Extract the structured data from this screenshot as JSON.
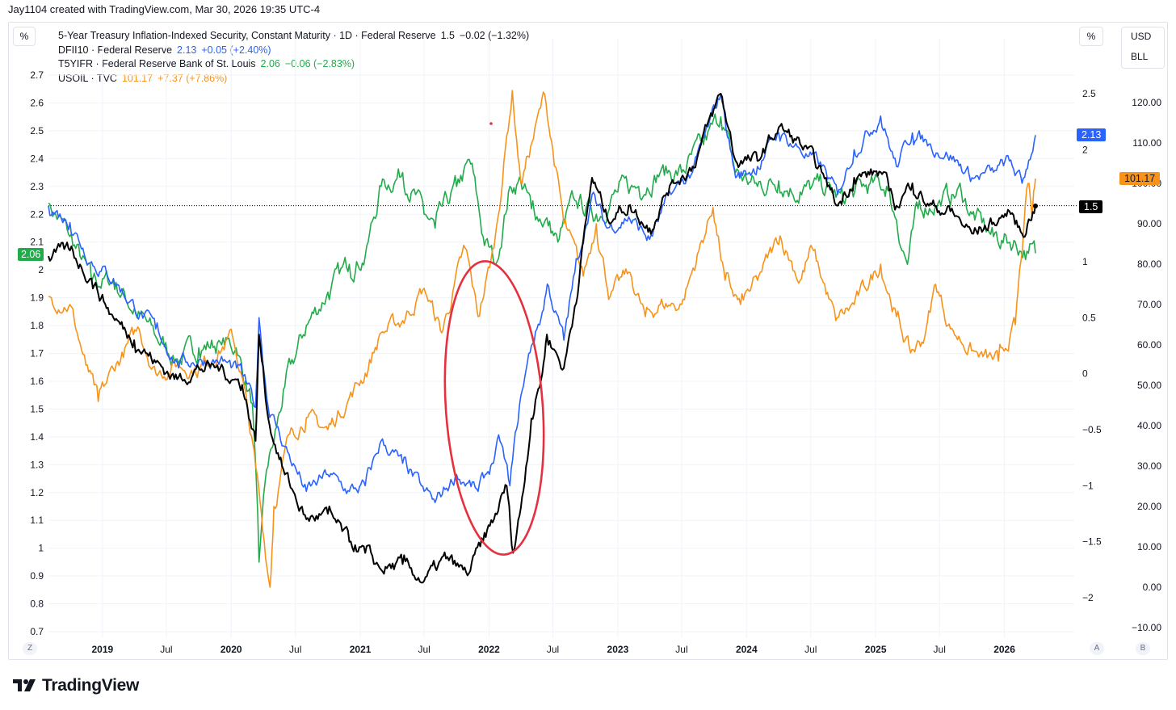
{
  "header": {
    "credit": "Jay1104 created with TradingView.com, Mar 30, 2026 19:35 UTC-4"
  },
  "toolbar": {
    "left_unit": "%",
    "right_unit": "%",
    "currency": "USD",
    "unit2": "BLL",
    "z_label": "Z",
    "a_label": "A",
    "b_label": "B"
  },
  "brand": {
    "name": "TradingView"
  },
  "legend": [
    {
      "title": "5-Year Treasury Inflation-Indexed Security, Constant Maturity · 1D · Federal Reserve",
      "value": "1.5",
      "change": "−0.02 (−1.32%)",
      "color": "#000000",
      "value_color": "#131722"
    },
    {
      "title": "DFII10 · Federal Reserve",
      "value": "2.13",
      "change": "+0.05 (+2.40%)",
      "color": "#2962ff",
      "value_color": "#2962ff"
    },
    {
      "title": "T5YIFR · Federal Reserve Bank of St. Louis",
      "value": "2.06",
      "change": "−0.06 (−2.83%)",
      "color": "#22ab4a",
      "value_color": "#22ab4a"
    },
    {
      "title": "USOIL · TVC",
      "value": "101.17",
      "change": "+7.37 (+7.86%)",
      "color": "#f7931a",
      "value_color": "#f7931a"
    }
  ],
  "price_badges": {
    "green": "2.06",
    "blue": "2.13",
    "black": "1.5",
    "orange": "101.17"
  },
  "chart_data": {
    "type": "line",
    "x_range": [
      "2018-08-01",
      "2026-03-30"
    ],
    "x_ticks": [
      {
        "label": "2019",
        "date": "2019-01-01",
        "bold": true
      },
      {
        "label": "Jul",
        "date": "2019-07-01",
        "bold": false
      },
      {
        "label": "2020",
        "date": "2020-01-01",
        "bold": true
      },
      {
        "label": "Jul",
        "date": "2020-07-01",
        "bold": false
      },
      {
        "label": "2021",
        "date": "2021-01-01",
        "bold": true
      },
      {
        "label": "Jul",
        "date": "2021-07-01",
        "bold": false
      },
      {
        "label": "2022",
        "date": "2022-01-01",
        "bold": true
      },
      {
        "label": "Jul",
        "date": "2022-07-01",
        "bold": false
      },
      {
        "label": "2023",
        "date": "2023-01-01",
        "bold": true
      },
      {
        "label": "Jul",
        "date": "2023-07-01",
        "bold": false
      },
      {
        "label": "2024",
        "date": "2024-01-01",
        "bold": true
      },
      {
        "label": "Jul",
        "date": "2024-07-01",
        "bold": false
      },
      {
        "label": "2025",
        "date": "2025-01-01",
        "bold": true
      },
      {
        "label": "Jul",
        "date": "2025-07-01",
        "bold": false
      },
      {
        "label": "2026",
        "date": "2026-01-01",
        "bold": true
      }
    ],
    "left_axis": {
      "unit": "%",
      "range": [
        0.7,
        2.75
      ],
      "ticks": [
        "0.7",
        "0.8",
        "0.9",
        "1",
        "1.1",
        "1.2",
        "1.3",
        "1.4",
        "1.5",
        "1.6",
        "1.7",
        "1.8",
        "1.9",
        "2",
        "2.1",
        "2.2",
        "2.3",
        "2.4",
        "2.5",
        "2.6",
        "2.7"
      ]
    },
    "mid_axis": {
      "unit": "%",
      "range": [
        -2.2,
        2.75
      ],
      "ticks": [
        "−2",
        "−1.5",
        "−1",
        "−0.5",
        "0",
        "0.5",
        "1",
        "1.5",
        "2",
        "2.5"
      ]
    },
    "right_axis": {
      "unit": "USD/BLL",
      "range": [
        -13,
        130
      ],
      "ticks": [
        "−10.00",
        "0.00",
        "10.00",
        "20.00",
        "30.00",
        "40.00",
        "50.00",
        "60.00",
        "70.00",
        "80.00",
        "90.00",
        "100.00",
        "110.00",
        "120.00"
      ]
    },
    "last_value_line": 1.5,
    "series": [
      {
        "name": "T5YIFR · Federal Reserve Bank of St. Louis",
        "axis": "left",
        "color": "#22ab4a",
        "points": [
          [
            "2018-08-01",
            2.24
          ],
          [
            "2018-10-01",
            2.12
          ],
          [
            "2018-12-01",
            1.96
          ],
          [
            "2019-02-01",
            1.96
          ],
          [
            "2019-04-01",
            1.86
          ],
          [
            "2019-06-01",
            1.76
          ],
          [
            "2019-08-01",
            1.68
          ],
          [
            "2019-10-01",
            1.72
          ],
          [
            "2019-12-01",
            1.74
          ],
          [
            "2020-01-15",
            1.72
          ],
          [
            "2020-03-01",
            1.52
          ],
          [
            "2020-03-20",
            0.95
          ],
          [
            "2020-04-10",
            1.28
          ],
          [
            "2020-05-01",
            1.38
          ],
          [
            "2020-06-01",
            1.58
          ],
          [
            "2020-08-01",
            1.8
          ],
          [
            "2020-10-01",
            1.92
          ],
          [
            "2020-12-01",
            2.02
          ],
          [
            "2021-01-15",
            2.05
          ],
          [
            "2021-03-01",
            2.3
          ],
          [
            "2021-05-01",
            2.35
          ],
          [
            "2021-07-01",
            2.2
          ],
          [
            "2021-08-01",
            2.15
          ],
          [
            "2021-10-01",
            2.3
          ],
          [
            "2021-11-10",
            2.38
          ],
          [
            "2021-12-15",
            2.12
          ],
          [
            "2022-01-20",
            2.02
          ],
          [
            "2022-03-01",
            2.3
          ],
          [
            "2022-04-01",
            2.32
          ],
          [
            "2022-05-01",
            2.22
          ],
          [
            "2022-06-10",
            2.18
          ],
          [
            "2022-07-15",
            2.1
          ],
          [
            "2022-09-01",
            2.25
          ],
          [
            "2022-11-01",
            2.2
          ],
          [
            "2023-01-01",
            2.28
          ],
          [
            "2023-03-01",
            2.3
          ],
          [
            "2023-05-01",
            2.35
          ],
          [
            "2023-07-01",
            2.35
          ],
          [
            "2023-09-01",
            2.45
          ],
          [
            "2023-10-20",
            2.55
          ],
          [
            "2023-12-01",
            2.35
          ],
          [
            "2024-02-01",
            2.3
          ],
          [
            "2024-04-01",
            2.32
          ],
          [
            "2024-06-01",
            2.28
          ],
          [
            "2024-08-01",
            2.3
          ],
          [
            "2024-10-01",
            2.25
          ],
          [
            "2024-12-01",
            2.3
          ],
          [
            "2025-02-01",
            2.3
          ],
          [
            "2025-03-01",
            2.18
          ],
          [
            "2025-04-01",
            2.02
          ],
          [
            "2025-05-01",
            2.22
          ],
          [
            "2025-07-01",
            2.25
          ],
          [
            "2025-09-01",
            2.28
          ],
          [
            "2025-10-01",
            2.2
          ],
          [
            "2025-12-01",
            2.12
          ],
          [
            "2026-02-01",
            2.1
          ],
          [
            "2026-03-10",
            2.06
          ],
          [
            "2026-03-30",
            2.06
          ]
        ]
      },
      {
        "name": "DFII10 · Federal Reserve",
        "axis": "mid",
        "color": "#2962ff",
        "points": [
          [
            "2018-08-01",
            1.5
          ],
          [
            "2018-10-01",
            1.35
          ],
          [
            "2018-12-01",
            1.0
          ],
          [
            "2019-02-01",
            0.85
          ],
          [
            "2019-04-01",
            0.6
          ],
          [
            "2019-06-01",
            0.4
          ],
          [
            "2019-08-01",
            0.1
          ],
          [
            "2019-10-01",
            0.12
          ],
          [
            "2019-12-01",
            0.12
          ],
          [
            "2020-02-01",
            0.0
          ],
          [
            "2020-03-10",
            -0.3
          ],
          [
            "2020-03-20",
            0.5
          ],
          [
            "2020-04-15",
            -0.3
          ],
          [
            "2020-06-01",
            -0.65
          ],
          [
            "2020-08-01",
            -1.05
          ],
          [
            "2020-10-01",
            -0.9
          ],
          [
            "2020-12-01",
            -1.05
          ],
          [
            "2021-01-15",
            -1.0
          ],
          [
            "2021-03-01",
            -0.6
          ],
          [
            "2021-05-01",
            -0.8
          ],
          [
            "2021-07-01",
            -1.05
          ],
          [
            "2021-08-01",
            -1.15
          ],
          [
            "2021-10-01",
            -0.9
          ],
          [
            "2021-12-01",
            -1.05
          ],
          [
            "2022-01-10",
            -0.8
          ],
          [
            "2022-02-01",
            -0.6
          ],
          [
            "2022-03-01",
            -1.0
          ],
          [
            "2022-04-01",
            -0.2
          ],
          [
            "2022-05-01",
            0.25
          ],
          [
            "2022-06-01",
            0.55
          ],
          [
            "2022-06-15",
            0.8
          ],
          [
            "2022-08-01",
            0.3
          ],
          [
            "2022-09-01",
            0.9
          ],
          [
            "2022-10-20",
            1.6
          ],
          [
            "2022-12-01",
            1.3
          ],
          [
            "2023-02-01",
            1.4
          ],
          [
            "2023-04-01",
            1.2
          ],
          [
            "2023-06-01",
            1.6
          ],
          [
            "2023-08-01",
            1.8
          ],
          [
            "2023-10-20",
            2.5
          ],
          [
            "2023-12-01",
            1.75
          ],
          [
            "2024-02-01",
            1.85
          ],
          [
            "2024-04-01",
            2.15
          ],
          [
            "2024-06-01",
            2.0
          ],
          [
            "2024-08-01",
            1.85
          ],
          [
            "2024-09-15",
            1.6
          ],
          [
            "2024-11-01",
            2.0
          ],
          [
            "2025-01-15",
            2.3
          ],
          [
            "2025-03-01",
            1.85
          ],
          [
            "2025-04-15",
            2.15
          ],
          [
            "2025-06-01",
            2.05
          ],
          [
            "2025-08-01",
            1.95
          ],
          [
            "2025-10-01",
            1.75
          ],
          [
            "2025-12-01",
            1.8
          ],
          [
            "2026-01-15",
            1.9
          ],
          [
            "2026-02-20",
            1.7
          ],
          [
            "2026-03-30",
            2.13
          ]
        ]
      },
      {
        "name": "5-Year Treasury Inflation-Indexed Security, Constant Maturity · 1D · Federal Reserve",
        "axis": "mid",
        "color": "#000000",
        "points": [
          [
            "2018-08-01",
            1.05
          ],
          [
            "2018-10-01",
            1.1
          ],
          [
            "2018-12-01",
            0.85
          ],
          [
            "2019-02-01",
            0.5
          ],
          [
            "2019-04-01",
            0.3
          ],
          [
            "2019-06-01",
            0.1
          ],
          [
            "2019-08-01",
            -0.05
          ],
          [
            "2019-10-01",
            0.05
          ],
          [
            "2019-12-01",
            0.05
          ],
          [
            "2020-02-01",
            -0.1
          ],
          [
            "2020-03-10",
            -0.6
          ],
          [
            "2020-03-20",
            0.35
          ],
          [
            "2020-04-15",
            -0.4
          ],
          [
            "2020-06-01",
            -0.9
          ],
          [
            "2020-08-01",
            -1.3
          ],
          [
            "2020-10-01",
            -1.25
          ],
          [
            "2020-12-01",
            -1.5
          ],
          [
            "2021-01-15",
            -1.6
          ],
          [
            "2021-03-01",
            -1.75
          ],
          [
            "2021-05-01",
            -1.7
          ],
          [
            "2021-07-01",
            -1.85
          ],
          [
            "2021-09-01",
            -1.65
          ],
          [
            "2021-11-01",
            -1.8
          ],
          [
            "2021-12-15",
            -1.5
          ],
          [
            "2022-01-15",
            -1.3
          ],
          [
            "2022-02-20",
            -1.0
          ],
          [
            "2022-03-10",
            -1.6
          ],
          [
            "2022-04-01",
            -1.2
          ],
          [
            "2022-05-01",
            -0.4
          ],
          [
            "2022-06-01",
            0.0
          ],
          [
            "2022-06-14",
            0.35
          ],
          [
            "2022-08-01",
            0.05
          ],
          [
            "2022-09-01",
            0.6
          ],
          [
            "2022-10-20",
            1.75
          ],
          [
            "2022-12-01",
            1.4
          ],
          [
            "2023-02-01",
            1.5
          ],
          [
            "2023-04-01",
            1.3
          ],
          [
            "2023-06-01",
            1.7
          ],
          [
            "2023-08-01",
            1.85
          ],
          [
            "2023-10-20",
            2.5
          ],
          [
            "2023-12-01",
            1.9
          ],
          [
            "2024-02-01",
            1.9
          ],
          [
            "2024-04-01",
            2.2
          ],
          [
            "2024-06-01",
            2.05
          ],
          [
            "2024-08-01",
            1.8
          ],
          [
            "2024-09-15",
            1.5
          ],
          [
            "2024-11-01",
            1.75
          ],
          [
            "2025-01-15",
            1.8
          ],
          [
            "2025-03-01",
            1.5
          ],
          [
            "2025-04-15",
            1.7
          ],
          [
            "2025-06-01",
            1.5
          ],
          [
            "2025-08-01",
            1.45
          ],
          [
            "2025-10-01",
            1.25
          ],
          [
            "2025-12-01",
            1.35
          ],
          [
            "2026-01-15",
            1.45
          ],
          [
            "2026-02-20",
            1.25
          ],
          [
            "2026-03-30",
            1.5
          ]
        ]
      },
      {
        "name": "USOIL · TVC",
        "axis": "right",
        "color": "#f7931a",
        "points": [
          [
            "2018-08-01",
            72
          ],
          [
            "2018-10-01",
            70
          ],
          [
            "2018-11-15",
            55
          ],
          [
            "2018-12-20",
            46
          ],
          [
            "2019-02-01",
            54
          ],
          [
            "2019-04-15",
            64
          ],
          [
            "2019-06-01",
            53
          ],
          [
            "2019-08-01",
            55
          ],
          [
            "2019-10-01",
            54
          ],
          [
            "2020-01-05",
            62
          ],
          [
            "2020-02-01",
            52
          ],
          [
            "2020-03-10",
            30
          ],
          [
            "2020-04-20",
            0
          ],
          [
            "2020-05-01",
            20
          ],
          [
            "2020-06-15",
            38
          ],
          [
            "2020-08-01",
            42
          ],
          [
            "2020-10-01",
            39
          ],
          [
            "2020-12-01",
            47
          ],
          [
            "2021-01-15",
            53
          ],
          [
            "2021-03-01",
            63
          ],
          [
            "2021-05-01",
            66
          ],
          [
            "2021-07-01",
            74
          ],
          [
            "2021-08-20",
            63
          ],
          [
            "2021-10-25",
            84
          ],
          [
            "2021-12-01",
            67
          ],
          [
            "2022-01-15",
            84
          ],
          [
            "2022-03-08",
            123
          ],
          [
            "2022-04-01",
            100
          ],
          [
            "2022-06-08",
            122
          ],
          [
            "2022-08-01",
            90
          ],
          [
            "2022-09-25",
            77
          ],
          [
            "2022-11-01",
            90
          ],
          [
            "2022-12-10",
            72
          ],
          [
            "2023-02-01",
            78
          ],
          [
            "2023-03-20",
            67
          ],
          [
            "2023-05-01",
            70
          ],
          [
            "2023-07-01",
            70
          ],
          [
            "2023-09-28",
            94
          ],
          [
            "2023-11-01",
            76
          ],
          [
            "2023-12-15",
            70
          ],
          [
            "2024-02-01",
            76
          ],
          [
            "2024-04-05",
            87
          ],
          [
            "2024-06-01",
            76
          ],
          [
            "2024-07-05",
            84
          ],
          [
            "2024-09-10",
            66
          ],
          [
            "2024-11-01",
            70
          ],
          [
            "2025-01-15",
            80
          ],
          [
            "2025-03-01",
            67
          ],
          [
            "2025-04-10",
            58
          ],
          [
            "2025-05-20",
            62
          ],
          [
            "2025-06-20",
            75
          ],
          [
            "2025-08-01",
            64
          ],
          [
            "2025-10-20",
            57
          ],
          [
            "2025-12-15",
            56
          ],
          [
            "2026-02-01",
            65
          ],
          [
            "2026-03-09",
            100
          ],
          [
            "2026-03-20",
            92
          ],
          [
            "2026-03-30",
            101.17
          ]
        ]
      }
    ]
  }
}
